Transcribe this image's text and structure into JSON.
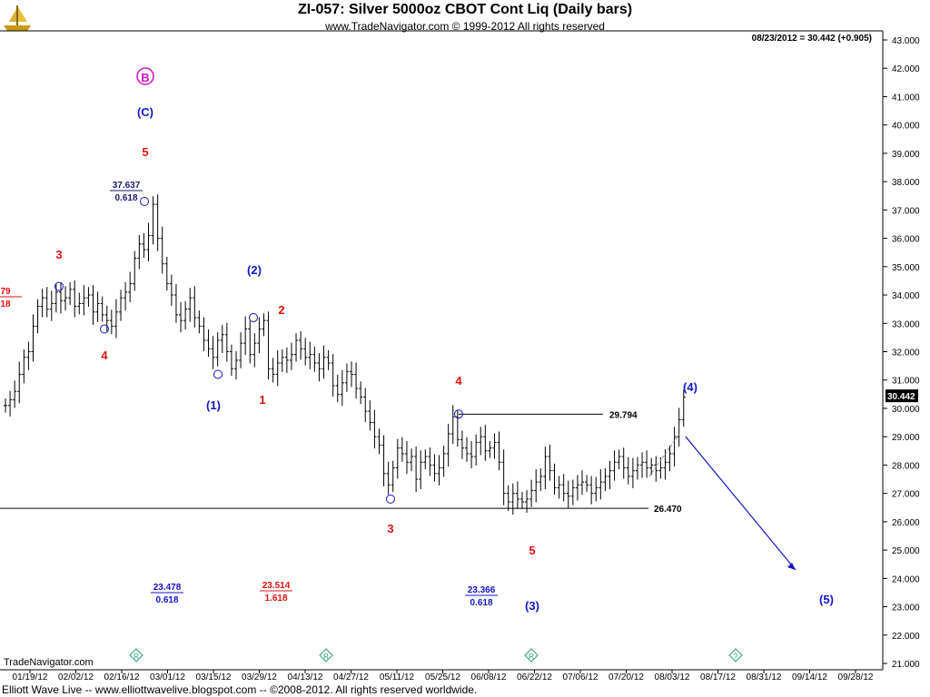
{
  "header": {
    "title": "ZI-057:  Silver 5000oz CBOT Cont Liq  (Daily bars)",
    "copyright": "www.TradeNavigator.com © 1999-2012 All rights reserved",
    "quote": "08/23/2012 = 30.442 (+0.905)"
  },
  "footer": {
    "text": "Elliott Wave Live -- www.elliottwavelive.blogspot.com -- ©2008-2012. All rights reserved worldwide.",
    "tn_logo": "TradeNavigator.com"
  },
  "colors": {
    "red": "#e01010",
    "blue": "#1414c8",
    "magenta": "#d010c8",
    "navy": "#1a1a6e"
  },
  "chart_data": {
    "type": "ohlc",
    "y_axis": {
      "range": [
        21,
        43
      ],
      "ticks": [
        "21.000",
        "22.000",
        "23.000",
        "24.000",
        "25.000",
        "26.000",
        "27.000",
        "28.000",
        "29.000",
        "30.000",
        "31.000",
        "32.000",
        "33.000",
        "34.000",
        "35.000",
        "36.000",
        "37.000",
        "38.000",
        "39.000",
        "40.000",
        "41.000",
        "42.000",
        "43.000"
      ]
    },
    "x_axis": {
      "ticks": [
        "01/19/12",
        "02/02/12",
        "02/16/12",
        "03/01/12",
        "03/15/12",
        "03/29/12",
        "04/13/12",
        "04/27/12",
        "05/11/12",
        "05/25/12",
        "06/08/12",
        "06/22/12",
        "07/06/12",
        "07/20/12",
        "08/03/12",
        "08/17/12",
        "08/31/12",
        "09/14/12",
        "09/28/12"
      ]
    },
    "last_price": "30.442",
    "bars_close": [
      30.1,
      30.3,
      30.6,
      31.2,
      31.8,
      32.0,
      32.9,
      33.6,
      33.9,
      33.5,
      33.7,
      34.1,
      33.8,
      33.9,
      34.2,
      33.6,
      33.7,
      33.9,
      34.0,
      33.4,
      33.7,
      33.3,
      33.1,
      32.9,
      33.4,
      33.9,
      34.1,
      34.4,
      35.3,
      35.8,
      35.6,
      36.1,
      37.2,
      36.0,
      35.1,
      34.4,
      34.0,
      33.3,
      33.1,
      33.5,
      33.9,
      33.2,
      32.9,
      32.4,
      32.1,
      31.8,
      32.4,
      32.6,
      32.0,
      31.4,
      31.7,
      32.3,
      32.8,
      31.9,
      32.3,
      32.8,
      33.1,
      31.4,
      31.2,
      31.6,
      31.8,
      31.7,
      31.9,
      32.4,
      32.1,
      31.8,
      31.9,
      31.6,
      31.4,
      31.8,
      31.6,
      30.8,
      30.5,
      30.9,
      31.3,
      31.2,
      30.7,
      30.4,
      29.9,
      29.5,
      29.0,
      28.7,
      27.7,
      27.3,
      27.9,
      28.6,
      28.4,
      28.1,
      28.3,
      27.5,
      28.1,
      28.3,
      28.0,
      27.7,
      27.9,
      28.4,
      29.1,
      29.7,
      28.9,
      28.6,
      28.4,
      28.3,
      28.8,
      29.0,
      28.5,
      28.6,
      28.8,
      28.1,
      27.0,
      26.7,
      27.0,
      26.8,
      26.7,
      26.8,
      27.1,
      27.4,
      27.6,
      28.3,
      27.8,
      27.2,
      27.3,
      27.0,
      26.9,
      27.2,
      27.3,
      27.4,
      27.3,
      27.0,
      27.2,
      27.4,
      27.6,
      27.8,
      28.1,
      28.3,
      27.9,
      27.6,
      27.8,
      28.0,
      28.1,
      27.9,
      28.0,
      27.8,
      27.9,
      28.1,
      28.4,
      29.0,
      29.6,
      30.4
    ]
  },
  "annotations": {
    "wave_labels": [
      {
        "text": "B",
        "color": "magenta",
        "circled": true
      },
      {
        "text": "(C)",
        "color": "blue"
      },
      {
        "text": "5",
        "color": "red"
      },
      {
        "text": "3",
        "color": "red"
      },
      {
        "text": "4",
        "color": "red"
      },
      {
        "text": "(2)",
        "color": "blue"
      },
      {
        "text": "2",
        "color": "red"
      },
      {
        "text": "(1)",
        "color": "blue"
      },
      {
        "text": "1",
        "color": "red"
      },
      {
        "text": "4",
        "color": "red"
      },
      {
        "text": "3",
        "color": "red"
      },
      {
        "text": "5",
        "color": "red"
      },
      {
        "text": "(3)",
        "color": "blue"
      },
      {
        "text": "(4)",
        "color": "blue"
      },
      {
        "text": "(5)",
        "color": "blue"
      }
    ],
    "level_labels": [
      {
        "value": "37.637",
        "ratio": "0.618",
        "color": "navy"
      },
      {
        "value": "23.478",
        "ratio": "0.618",
        "color": "blue"
      },
      {
        "value": "23.514",
        "ratio": "1.618",
        "color": "red"
      },
      {
        "value": "23.366",
        "ratio": "0.618",
        "color": "blue"
      },
      {
        "value": "79",
        "ratio": "18",
        "color": "red"
      }
    ],
    "hlines": [
      {
        "label": "29.794",
        "price": 29.794
      },
      {
        "label": "26.470",
        "price": 26.47
      }
    ]
  }
}
